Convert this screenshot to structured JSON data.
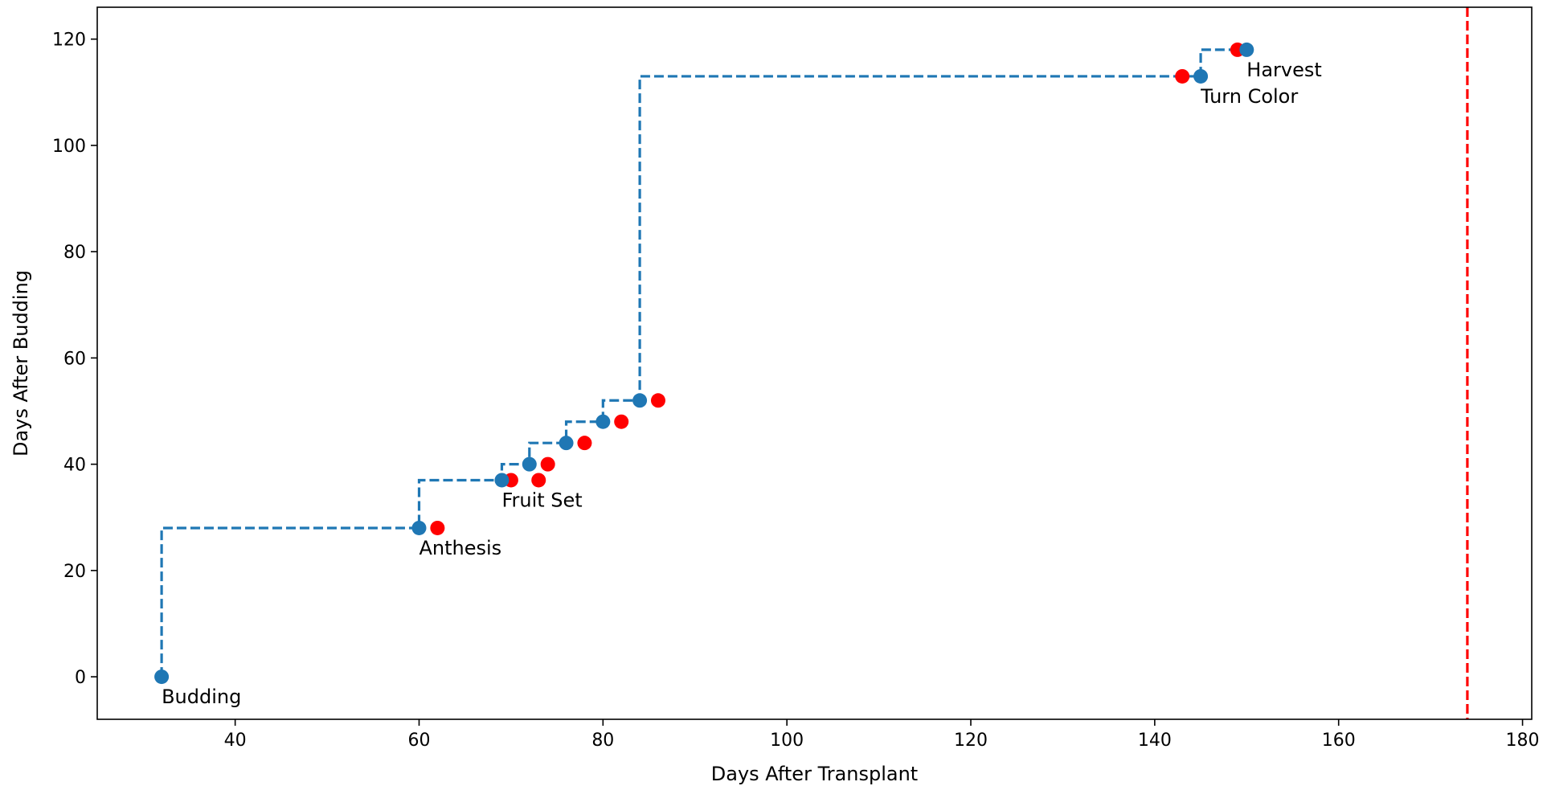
{
  "chart_data": {
    "type": "scatter",
    "title": "",
    "xlabel": "Days After Transplant",
    "ylabel": "Days After Budding",
    "xlim": [
      25,
      181
    ],
    "ylim": [
      -8,
      126
    ],
    "xticks": [
      40,
      60,
      80,
      100,
      120,
      140,
      160,
      180
    ],
    "yticks": [
      0,
      20,
      40,
      60,
      80,
      100,
      120
    ],
    "grid": false,
    "colors": {
      "step": "#1f77b4",
      "red": "#ff0000",
      "vline": "#ff0000"
    },
    "series": [
      {
        "style": "step-post-dashed-with-markers",
        "color": "#1f77b4",
        "x": [
          32,
          60,
          69,
          72,
          76,
          80,
          84,
          145,
          150
        ],
        "y": [
          0,
          28,
          37,
          40,
          44,
          48,
          52,
          113,
          118
        ]
      },
      {
        "style": "markers",
        "color": "#ff0000",
        "x": [
          62,
          70,
          73,
          74,
          78,
          82,
          86,
          143,
          149
        ],
        "y": [
          28,
          37,
          37,
          40,
          44,
          48,
          52,
          113,
          118
        ]
      }
    ],
    "vertical_line": {
      "x": 174,
      "color": "#ff0000",
      "style": "dashed"
    },
    "annotations": [
      {
        "text": "Budding",
        "x": 32,
        "y": 0
      },
      {
        "text": "Anthesis",
        "x": 60,
        "y": 28
      },
      {
        "text": "Fruit Set",
        "x": 69,
        "y": 37
      },
      {
        "text": "Turn Color",
        "x": 145,
        "y": 113
      },
      {
        "text": "Harvest",
        "x": 150,
        "y": 118
      }
    ]
  }
}
